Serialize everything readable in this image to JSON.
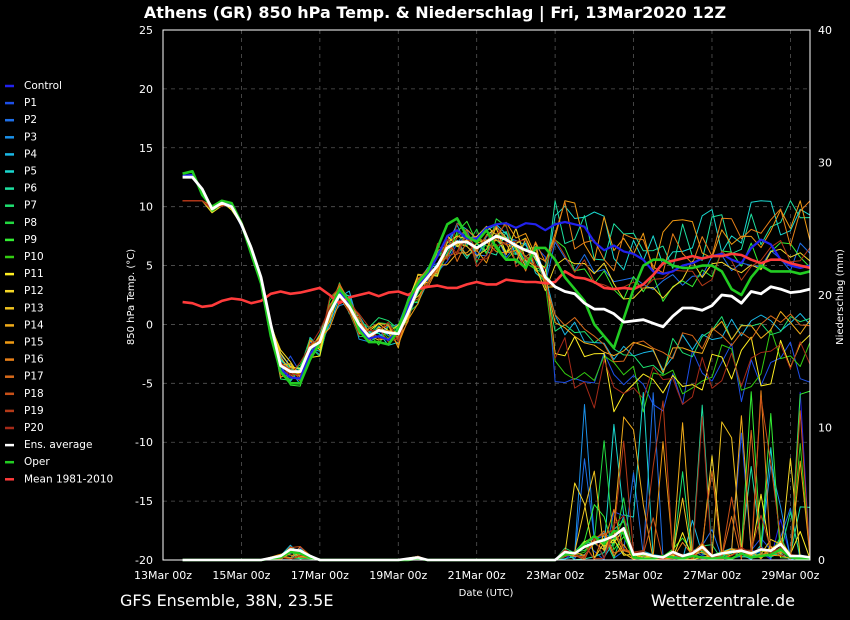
{
  "title": "Athens  (GR)  850 hPa Temp. & Niederschlag | Fri, 13Mar2020 12Z",
  "footer_left": "GFS Ensemble, 38N, 23.5E",
  "footer_right": "Wetterzentrale.de",
  "colors": {
    "background": "#000000",
    "grid": "#555555",
    "ens_average": "#ffffff",
    "oper": "#22cc22",
    "control": "#2222ee",
    "mean": "#ff3b3b"
  },
  "chart_data": {
    "type": "line",
    "xlabel": "Date (UTC)",
    "ylabel": "850 hPa Temp. (°C)",
    "y2label": "Niederschlag (mm)",
    "xlim": [
      0,
      16.5
    ],
    "ylim": [
      -20,
      25
    ],
    "y2lim": [
      0,
      40
    ],
    "grid": true,
    "legend_position": "left",
    "x_tick_labels": [
      "13Mar 00z",
      "15Mar 00z",
      "17Mar 00z",
      "19Mar 00z",
      "21Mar 00z",
      "23Mar 00z",
      "25Mar 00z",
      "27Mar 00z",
      "29Mar 00z"
    ],
    "x_tick_days": [
      0,
      2,
      4,
      6,
      8,
      10,
      12,
      14,
      16
    ],
    "y_ticks": [
      25,
      20,
      15,
      10,
      5,
      0,
      -5,
      -10,
      -15,
      -20
    ],
    "y2_ticks": [
      40,
      30,
      20,
      10,
      0
    ],
    "legend": [
      "Control",
      "P1",
      "P2",
      "P3",
      "P4",
      "P5",
      "P6",
      "P7",
      "P8",
      "P9",
      "P10",
      "P11",
      "P12",
      "P13",
      "P14",
      "P15",
      "P16",
      "P17",
      "P18",
      "P19",
      "P20",
      "Ens. average",
      "Oper",
      "Mean 1981-2010"
    ],
    "member_colors": [
      "#2222ee",
      "#1d4fe8",
      "#1e6fe8",
      "#1a90e8",
      "#1ab8e6",
      "#1ad8d0",
      "#1ee0a0",
      "#1ee070",
      "#22d840",
      "#33ee33",
      "#33cc11",
      "#ffee22",
      "#f6d827",
      "#eec21f",
      "#f0ab1a",
      "#f09a12",
      "#e88018",
      "#d86a1a",
      "#c85018",
      "#b43a18",
      "#a52a18"
    ],
    "temperature_days": [
      0.5,
      0.75,
      1.0,
      1.25,
      1.5,
      1.75,
      2.0,
      2.25,
      2.5,
      2.75,
      3.0,
      3.25,
      3.5,
      3.75,
      4.0,
      4.25,
      4.5,
      4.75,
      5.0,
      5.25,
      5.5,
      5.75,
      6.0,
      6.25,
      6.5,
      6.75,
      7.0,
      7.25,
      7.5,
      7.75,
      8.0,
      8.25,
      8.5,
      8.75,
      9.0,
      9.25,
      9.5,
      9.75,
      10.0,
      10.25,
      10.5,
      10.75,
      11.0,
      11.25,
      11.5,
      11.75,
      12.0,
      12.25,
      12.5,
      12.75,
      13.0,
      13.25,
      13.5,
      13.75,
      14.0,
      14.25,
      14.5,
      14.75,
      15.0,
      15.25,
      15.5,
      15.75,
      16.0,
      16.25,
      16.5
    ],
    "ens_average_temp": [
      12.5,
      12.5,
      11.5,
      9.8,
      10.3,
      10.0,
      8.5,
      6.5,
      4.0,
      0.0,
      -3.5,
      -4.0,
      -4.0,
      -2.0,
      -1.5,
      1.0,
      2.5,
      1.5,
      0.0,
      -1.0,
      -0.5,
      -0.7,
      -0.8,
      1.0,
      3.0,
      4.0,
      5.0,
      6.5,
      7.0,
      7.0,
      6.5,
      7.0,
      7.5,
      7.2,
      6.7,
      6.3,
      6.0,
      4.0,
      3.2,
      2.8,
      2.6,
      1.8,
      1.3,
      1.3,
      0.9,
      0.2,
      0.3,
      0.4,
      0.1,
      -0.2,
      0.7,
      1.4,
      1.4,
      1.2,
      1.6,
      2.5,
      2.4,
      1.8,
      2.8,
      2.6,
      3.2,
      3.0,
      2.7,
      2.8,
      3.0
    ],
    "oper_temp": [
      12.8,
      13.0,
      11.0,
      10.0,
      10.5,
      10.3,
      8.6,
      6.0,
      3.5,
      -1.0,
      -4.0,
      -5.0,
      -5.0,
      -3.0,
      -1.5,
      1.0,
      3.0,
      2.0,
      -0.5,
      -1.5,
      -1.5,
      -1.7,
      -0.5,
      2.0,
      3.5,
      4.5,
      6.5,
      8.5,
      9.0,
      7.5,
      7.0,
      8.0,
      6.5,
      5.5,
      5.5,
      4.8,
      6.5,
      6.5,
      5.5,
      4.0,
      3.0,
      2.0,
      0.0,
      -1.0,
      -2.0,
      0.5,
      3.0,
      5.0,
      5.5,
      5.5,
      5.0,
      4.8,
      4.8,
      5.0,
      5.0,
      4.5,
      3.0,
      2.5,
      4.0,
      5.0,
      4.5,
      4.5,
      4.5,
      4.3,
      4.5
    ],
    "control_temp": [
      12.6,
      12.7,
      11.2,
      9.9,
      10.4,
      10.1,
      8.6,
      6.2,
      3.8,
      -0.5,
      -3.8,
      -4.5,
      -4.6,
      -2.5,
      -1.5,
      1.0,
      2.8,
      1.6,
      -0.2,
      -1.2,
      -1.0,
      -1.3,
      -0.6,
      1.5,
      3.2,
      4.3,
      5.8,
      7.5,
      8.0,
      7.3,
      7.3,
      8.2,
      8.5,
      8.6,
      8.2,
      8.6,
      8.5,
      8.0,
      8.5,
      8.7,
      8.5,
      8.3,
      7.0,
      6.3,
      6.7,
      6.2,
      6.0,
      5.5,
      4.5,
      4.3,
      4.5,
      5.0,
      5.2,
      5.6,
      5.8,
      6.0,
      5.5,
      5.2,
      6.5,
      7.2,
      6.8,
      5.5,
      5.0,
      4.8,
      5.0
    ],
    "mean_1981_2010": [
      1.9,
      1.8,
      1.5,
      1.6,
      2.0,
      2.2,
      2.1,
      1.8,
      2.0,
      2.6,
      2.8,
      2.6,
      2.7,
      2.9,
      3.1,
      2.5,
      1.8,
      2.3,
      2.5,
      2.7,
      2.4,
      2.7,
      2.8,
      2.5,
      3.0,
      3.2,
      3.3,
      3.1,
      3.1,
      3.4,
      3.6,
      3.4,
      3.4,
      3.8,
      3.7,
      3.6,
      3.6,
      3.5,
      3.6,
      4.5,
      4.0,
      3.9,
      3.6,
      3.1,
      3.0,
      3.1,
      3.0,
      3.4,
      4.2,
      5.2,
      5.4,
      5.6,
      5.8,
      5.6,
      5.8,
      5.8,
      6.0,
      5.9,
      5.5,
      5.2,
      5.5,
      5.5,
      5.2,
      5.0,
      4.8
    ],
    "precip_days": [
      0.5,
      1.0,
      1.5,
      2.0,
      2.5,
      3.0,
      3.25,
      3.5,
      3.75,
      4.0,
      4.5,
      5.0,
      5.5,
      6.0,
      6.25,
      6.5,
      6.75,
      7.0,
      7.5,
      8.0,
      8.5,
      9.0,
      9.5,
      10.0,
      10.25,
      10.5,
      10.75,
      11.0,
      11.25,
      11.5,
      11.75,
      12.0,
      12.25,
      12.5,
      12.75,
      13.0,
      13.25,
      13.5,
      13.75,
      14.0,
      14.25,
      14.5,
      14.75,
      15.0,
      15.25,
      15.5,
      15.75,
      16.0,
      16.25,
      16.5
    ],
    "ens_average_precip": [
      0,
      0,
      0,
      0,
      0,
      0.3,
      0.8,
      0.7,
      0.3,
      0,
      0,
      0,
      0,
      0,
      0.1,
      0.2,
      0,
      0,
      0,
      0,
      0,
      0,
      0,
      0,
      0.6,
      0.5,
      1.0,
      1.3,
      1.5,
      1.8,
      2.4,
      0.4,
      0.5,
      0.3,
      0.2,
      0.6,
      0.3,
      0.5,
      1.0,
      0.3,
      0.5,
      0.6,
      0.7,
      0.5,
      0.8,
      0.7,
      1.2,
      0.3,
      0.3,
      0.2
    ],
    "oper_precip": [
      0,
      0,
      0,
      0,
      0,
      0.2,
      0.6,
      0.5,
      0.2,
      0,
      0,
      0,
      0,
      0,
      0,
      0.1,
      0,
      0,
      0,
      0,
      0,
      0,
      0,
      0,
      0.4,
      0.5,
      1.2,
      1.8,
      1.2,
      2.2,
      2.0,
      0.2,
      0.1,
      0.1,
      0.3,
      0.2,
      0.1,
      0.3,
      0.2,
      0.1,
      0.2,
      0.1,
      0.5,
      0.2,
      0.3,
      0.4,
      0.8,
      0.2,
      0.1,
      0.1
    ]
  }
}
